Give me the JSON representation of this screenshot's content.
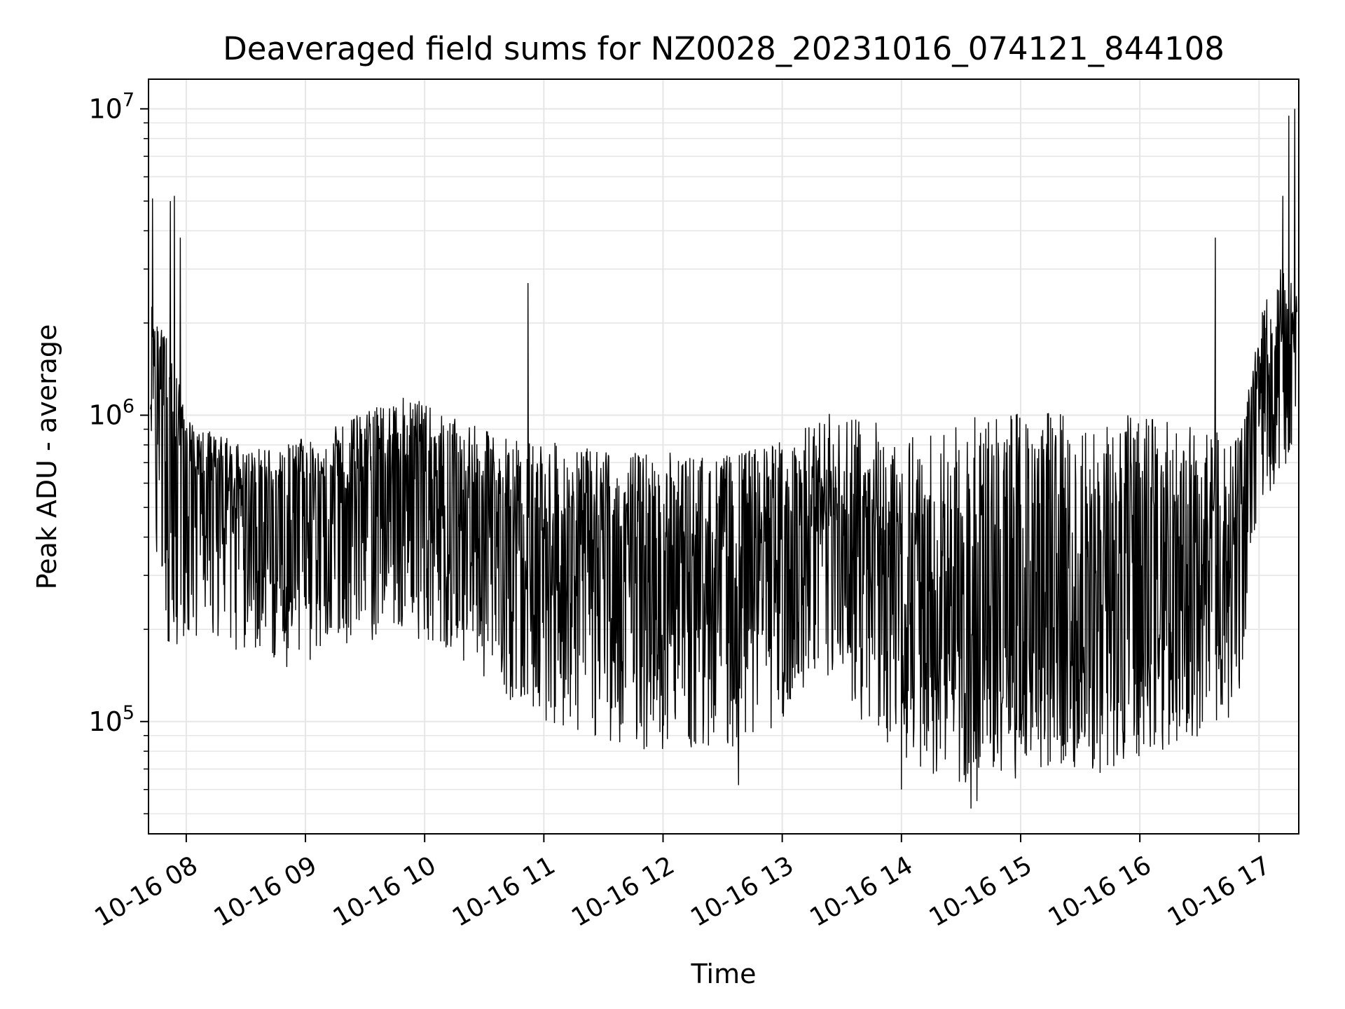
{
  "chart_data": {
    "type": "line",
    "title": "Deaveraged field sums for NZ0028_20231016_074121_844108",
    "xlabel": "Time",
    "ylabel": "Peak ADU - average",
    "yscale": "log",
    "ylim": [
      43000,
      12500000
    ],
    "xlim": [
      "2023-10-16 07:41",
      "2023-10-16 17:20"
    ],
    "grid": true,
    "legend": "none",
    "line_color": "#000000",
    "grid_color": "#e6e6e6",
    "x_ticks": [
      "10-16 08",
      "10-16 09",
      "10-16 10",
      "10-16 11",
      "10-16 12",
      "10-16 13",
      "10-16 14",
      "10-16 15",
      "10-16 16",
      "10-16 17"
    ],
    "y_ticks": [
      {
        "value": 100000,
        "base": "10",
        "exp": "5"
      },
      {
        "value": 1000000,
        "base": "10",
        "exp": "6"
      },
      {
        "value": 10000000,
        "base": "10",
        "exp": "7"
      }
    ],
    "series": [
      {
        "x": [
          "2023-10-16 07:42",
          "2023-10-16 07:45",
          "2023-10-16 07:50",
          "2023-10-16 07:55",
          "2023-10-16 08:00",
          "2023-10-16 08:10",
          "2023-10-16 08:20",
          "2023-10-16 08:30",
          "2023-10-16 08:40",
          "2023-10-16 08:50",
          "2023-10-16 09:00",
          "2023-10-16 09:10",
          "2023-10-16 09:20",
          "2023-10-16 09:30",
          "2023-10-16 09:40",
          "2023-10-16 09:50",
          "2023-10-16 10:00",
          "2023-10-16 10:10",
          "2023-10-16 10:20",
          "2023-10-16 10:30",
          "2023-10-16 10:40",
          "2023-10-16 10:50",
          "2023-10-16 11:00",
          "2023-10-16 11:10",
          "2023-10-16 11:20",
          "2023-10-16 11:30",
          "2023-10-16 11:40",
          "2023-10-16 11:50",
          "2023-10-16 12:00",
          "2023-10-16 12:10",
          "2023-10-16 12:20",
          "2023-10-16 12:30",
          "2023-10-16 12:40",
          "2023-10-16 12:50",
          "2023-10-16 13:00",
          "2023-10-16 13:10",
          "2023-10-16 13:20",
          "2023-10-16 13:30",
          "2023-10-16 13:40",
          "2023-10-16 13:50",
          "2023-10-16 14:00",
          "2023-10-16 14:10",
          "2023-10-16 14:20",
          "2023-10-16 14:30",
          "2023-10-16 14:40",
          "2023-10-16 14:50",
          "2023-10-16 15:00",
          "2023-10-16 15:10",
          "2023-10-16 15:20",
          "2023-10-16 15:30",
          "2023-10-16 15:40",
          "2023-10-16 15:50",
          "2023-10-16 16:00",
          "2023-10-16 16:10",
          "2023-10-16 16:20",
          "2023-10-16 16:30",
          "2023-10-16 16:40",
          "2023-10-16 16:50",
          "2023-10-16 17:00",
          "2023-10-16 17:05",
          "2023-10-16 17:10",
          "2023-10-16 17:15",
          "2023-10-16 17:19"
        ],
        "y": [
          1500000,
          1200000,
          900000,
          700000,
          650000,
          620000,
          580000,
          540000,
          520000,
          500000,
          520000,
          540000,
          560000,
          600000,
          650000,
          680000,
          640000,
          580000,
          520000,
          480000,
          440000,
          400000,
          380000,
          360000,
          350000,
          340000,
          340000,
          330000,
          320000,
          320000,
          310000,
          310000,
          320000,
          340000,
          360000,
          380000,
          400000,
          420000,
          360000,
          320000,
          280000,
          250000,
          230000,
          220000,
          220000,
          230000,
          240000,
          250000,
          250000,
          240000,
          230000,
          240000,
          260000,
          280000,
          300000,
          310000,
          320000,
          330000,
          1100000,
          1300000,
          1500000,
          1700000,
          1500000
        ],
        "upper": [
          2300000,
          2200000,
          1800000,
          1400000,
          1000000,
          900000,
          850000,
          800000,
          780000,
          800000,
          850000,
          900000,
          950000,
          1050000,
          1100000,
          1150000,
          1100000,
          1000000,
          950000,
          900000,
          850000,
          850000,
          830000,
          800000,
          780000,
          780000,
          770000,
          760000,
          760000,
          760000,
          740000,
          740000,
          760000,
          800000,
          850000,
          900000,
          1000000,
          1050000,
          1000000,
          950000,
          900000,
          880000,
          900000,
          950000,
          1000000,
          1050000,
          1050000,
          1050000,
          1050000,
          1000000,
          1000000,
          1000000,
          1000000,
          980000,
          950000,
          900000,
          880000,
          860000,
          2000000,
          2600000,
          3000000,
          3200000,
          2800000
        ],
        "lower": [
          800000,
          350000,
          180000,
          150000,
          170000,
          200000,
          180000,
          160000,
          160000,
          150000,
          150000,
          170000,
          180000,
          180000,
          190000,
          200000,
          180000,
          170000,
          150000,
          140000,
          120000,
          110000,
          100000,
          95000,
          90000,
          85000,
          85000,
          80000,
          80000,
          80000,
          80000,
          80000,
          85000,
          90000,
          100000,
          110000,
          120000,
          130000,
          100000,
          85000,
          75000,
          70000,
          65000,
          60000,
          60000,
          62000,
          65000,
          70000,
          72000,
          70000,
          68000,
          70000,
          75000,
          80000,
          85000,
          90000,
          95000,
          100000,
          500000,
          550000,
          600000,
          700000,
          800000
        ]
      }
    ],
    "peaks": [
      {
        "x": "2023-10-16 07:43",
        "y": 5100000
      },
      {
        "x": "2023-10-16 07:52",
        "y": 5000000
      },
      {
        "x": "2023-10-16 07:54",
        "y": 5200000
      },
      {
        "x": "2023-10-16 07:57",
        "y": 3800000
      },
      {
        "x": "2023-10-16 10:52",
        "y": 2700000
      },
      {
        "x": "2023-10-16 16:38",
        "y": 3800000
      },
      {
        "x": "2023-10-16 17:12",
        "y": 5200000
      },
      {
        "x": "2023-10-16 17:15",
        "y": 9500000
      },
      {
        "x": "2023-10-16 17:18",
        "y": 10000000
      }
    ],
    "troughs": [
      {
        "x": "2023-10-16 14:35",
        "y": 52000
      },
      {
        "x": "2023-10-16 14:38",
        "y": 55000
      },
      {
        "x": "2023-10-16 12:38",
        "y": 62000
      },
      {
        "x": "2023-10-16 14:00",
        "y": 60000
      },
      {
        "x": "2023-10-16 15:40",
        "y": 68000
      }
    ]
  }
}
